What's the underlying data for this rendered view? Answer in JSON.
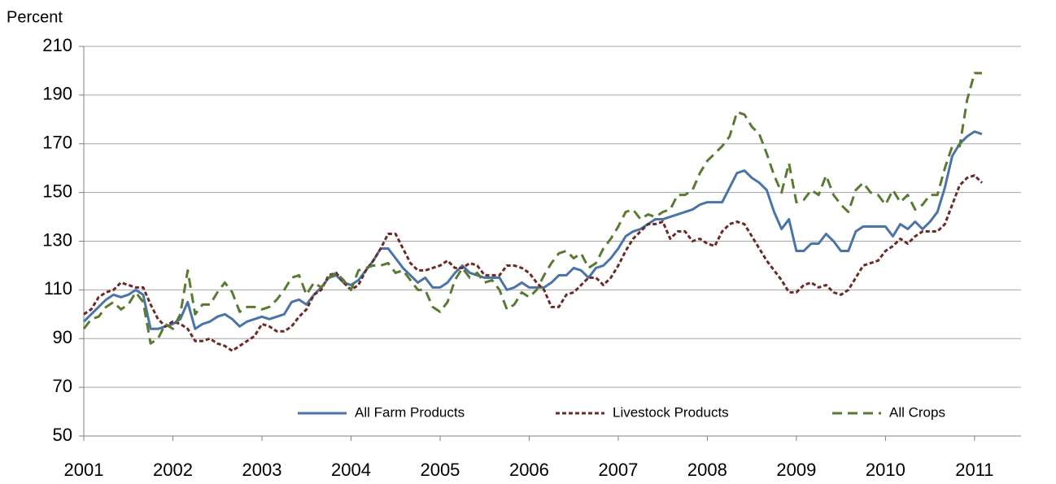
{
  "chart_data": {
    "type": "line",
    "y_label": "Percent",
    "categories": [
      "2001",
      null,
      null,
      null,
      null,
      null,
      null,
      null,
      null,
      null,
      null,
      null,
      "2002",
      null,
      null,
      null,
      null,
      null,
      null,
      null,
      null,
      null,
      null,
      null,
      "2003",
      null,
      null,
      null,
      null,
      null,
      null,
      null,
      null,
      null,
      null,
      null,
      "2004",
      null,
      null,
      null,
      null,
      null,
      null,
      null,
      null,
      null,
      null,
      null,
      "2005",
      null,
      null,
      null,
      null,
      null,
      null,
      null,
      null,
      null,
      null,
      null,
      "2006",
      null,
      null,
      null,
      null,
      null,
      null,
      null,
      null,
      null,
      null,
      null,
      "2007",
      null,
      null,
      null,
      null,
      null,
      null,
      null,
      null,
      null,
      null,
      null,
      "2008",
      null,
      null,
      null,
      null,
      null,
      null,
      null,
      null,
      null,
      null,
      null,
      "2009",
      null,
      null,
      null,
      null,
      null,
      null,
      null,
      null,
      null,
      null,
      null,
      "2010",
      null,
      null,
      null,
      null,
      null,
      null,
      null,
      null,
      null,
      null,
      null,
      "2011",
      null
    ],
    "series": [
      {
        "name": "All Farm Products",
        "color": "#4a74a8",
        "style": "solid",
        "values": [
          97,
          100,
          103,
          106,
          108,
          107,
          108,
          110,
          108,
          94,
          94,
          95,
          96,
          98,
          105,
          94,
          96,
          97,
          99,
          100,
          98,
          95,
          97,
          98,
          99,
          98,
          99,
          100,
          105,
          106,
          104,
          108,
          111,
          115,
          116,
          113,
          112,
          114,
          118,
          122,
          127,
          127,
          123,
          119,
          116,
          113,
          115,
          111,
          111,
          113,
          117,
          120,
          117,
          116,
          115,
          115,
          115,
          110,
          111,
          113,
          111,
          111,
          111,
          113,
          116,
          116,
          119,
          118,
          115,
          119,
          120,
          123,
          127,
          132,
          134,
          135,
          137,
          139,
          139,
          140,
          141,
          142,
          143,
          145,
          146,
          146,
          146,
          152,
          158,
          159,
          156,
          154,
          151,
          142,
          135,
          139,
          126,
          126,
          129,
          129,
          133,
          130,
          126,
          126,
          134,
          136,
          136,
          136,
          136,
          132,
          137,
          135,
          138,
          135,
          138,
          142,
          152,
          165,
          170,
          173,
          175,
          174
        ]
      },
      {
        "name": "Livestock Products",
        "color": "#6b2a26",
        "style": "dotted",
        "values": [
          100,
          102,
          107,
          109,
          110,
          113,
          112,
          111,
          111,
          104,
          98,
          95,
          97,
          96,
          94,
          89,
          89,
          90,
          88,
          87,
          85,
          87,
          89,
          91,
          96,
          95,
          93,
          93,
          95,
          99,
          102,
          108,
          110,
          116,
          117,
          113,
          110,
          112,
          118,
          122,
          127,
          133,
          133,
          127,
          121,
          118,
          118,
          119,
          120,
          122,
          119,
          119,
          121,
          120,
          116,
          116,
          116,
          120,
          120,
          119,
          117,
          113,
          110,
          103,
          103,
          108,
          109,
          112,
          115,
          115,
          112,
          115,
          120,
          126,
          131,
          134,
          137,
          137,
          138,
          131,
          134,
          134,
          130,
          131,
          129,
          128,
          134,
          137,
          138,
          137,
          132,
          127,
          122,
          118,
          114,
          109,
          109,
          112,
          113,
          111,
          112,
          109,
          108,
          110,
          115,
          120,
          121,
          122,
          126,
          128,
          131,
          129,
          132,
          134,
          134,
          134,
          137,
          145,
          153,
          156,
          157,
          154
        ]
      },
      {
        "name": "All Crops",
        "color": "#5a7a32",
        "style": "dashed",
        "values": [
          94,
          98,
          99,
          103,
          105,
          102,
          104,
          109,
          105,
          88,
          90,
          96,
          94,
          100,
          118,
          100,
          104,
          104,
          109,
          113,
          109,
          101,
          103,
          103,
          102,
          103,
          106,
          110,
          115,
          116,
          108,
          113,
          111,
          115,
          117,
          114,
          110,
          118,
          119,
          120,
          120,
          121,
          117,
          118,
          114,
          110,
          110,
          103,
          101,
          105,
          114,
          119,
          115,
          117,
          113,
          114,
          110,
          102,
          104,
          109,
          107,
          110,
          116,
          121,
          125,
          126,
          123,
          125,
          119,
          121,
          127,
          131,
          136,
          142,
          143,
          139,
          141,
          140,
          142,
          143,
          149,
          149,
          151,
          158,
          163,
          166,
          169,
          173,
          183,
          182,
          177,
          174,
          166,
          157,
          150,
          162,
          146,
          147,
          151,
          149,
          157,
          149,
          145,
          142,
          151,
          154,
          150,
          149,
          145,
          151,
          146,
          149,
          143,
          145,
          149,
          149,
          160,
          169,
          169,
          188,
          199,
          199
        ]
      }
    ],
    "ylim": [
      50,
      210
    ],
    "yticks": [
      50,
      70,
      90,
      110,
      130,
      150,
      170,
      190,
      210
    ],
    "grid": true,
    "legend": "bottom"
  }
}
